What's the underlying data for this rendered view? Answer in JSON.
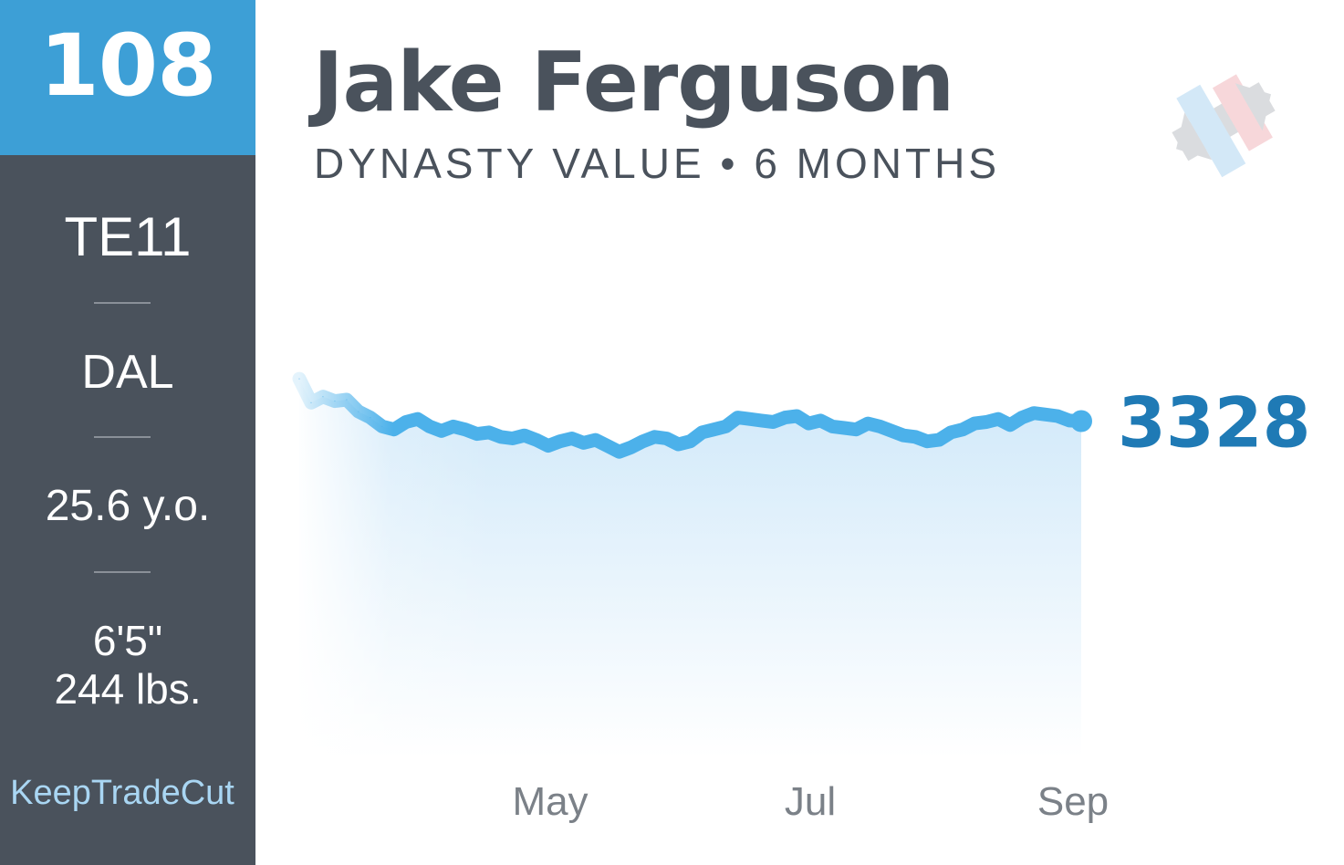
{
  "player": {
    "rank": "108",
    "position_rank": "TE11",
    "team": "DAL",
    "age": "25.6 y.o.",
    "height": "6'5\"",
    "weight": "244 lbs.",
    "name": "Jake Ferguson",
    "subtitle": "DYNASTY VALUE • 6 MONTHS",
    "brand": "KeepTradeCut"
  },
  "colors": {
    "accent": "#3d9fd6",
    "sidebar": "#4a525c",
    "line": "#4cb1ea",
    "value_text": "#1f7ab5",
    "brand_text": "#a9d6f3"
  },
  "icons": [
    "ktc-logo-icon"
  ],
  "chart_data": {
    "type": "area",
    "title": "",
    "xlabel": "",
    "ylabel": "",
    "x_ticks": [
      "May",
      "Jul",
      "Sep"
    ],
    "current_value": "3328",
    "ylim": [
      2200,
      3700
    ],
    "grid": false,
    "legend": "none",
    "series": [
      {
        "values": [
          3470,
          3390,
          3410,
          3395,
          3400,
          3360,
          3340,
          3310,
          3300,
          3325,
          3335,
          3310,
          3295,
          3310,
          3300,
          3285,
          3290,
          3275,
          3270,
          3280,
          3265,
          3245,
          3260,
          3270,
          3255,
          3265,
          3245,
          3225,
          3240,
          3260,
          3275,
          3270,
          3250,
          3260,
          3290,
          3300,
          3310,
          3340,
          3335,
          3330,
          3325,
          3340,
          3345,
          3320,
          3330,
          3310,
          3305,
          3300,
          3320,
          3310,
          3295,
          3280,
          3275,
          3260,
          3265,
          3290,
          3300,
          3320,
          3325,
          3335,
          3315,
          3340,
          3355,
          3350,
          3345,
          3330,
          3328
        ]
      }
    ]
  }
}
